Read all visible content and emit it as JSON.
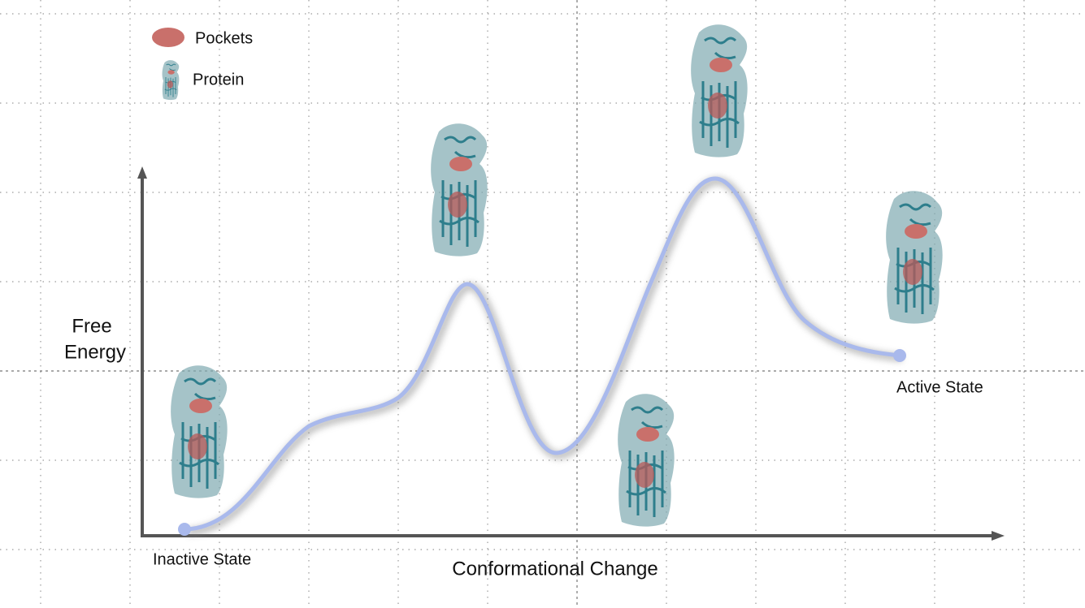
{
  "legend": [
    {
      "label": "Pockets"
    },
    {
      "label": "Protein"
    }
  ],
  "axes": {
    "y_label": [
      "Free",
      "Energy"
    ],
    "x_label": "Conformational Change"
  },
  "states": {
    "start": "Inactive State",
    "end": "Active State"
  }
}
